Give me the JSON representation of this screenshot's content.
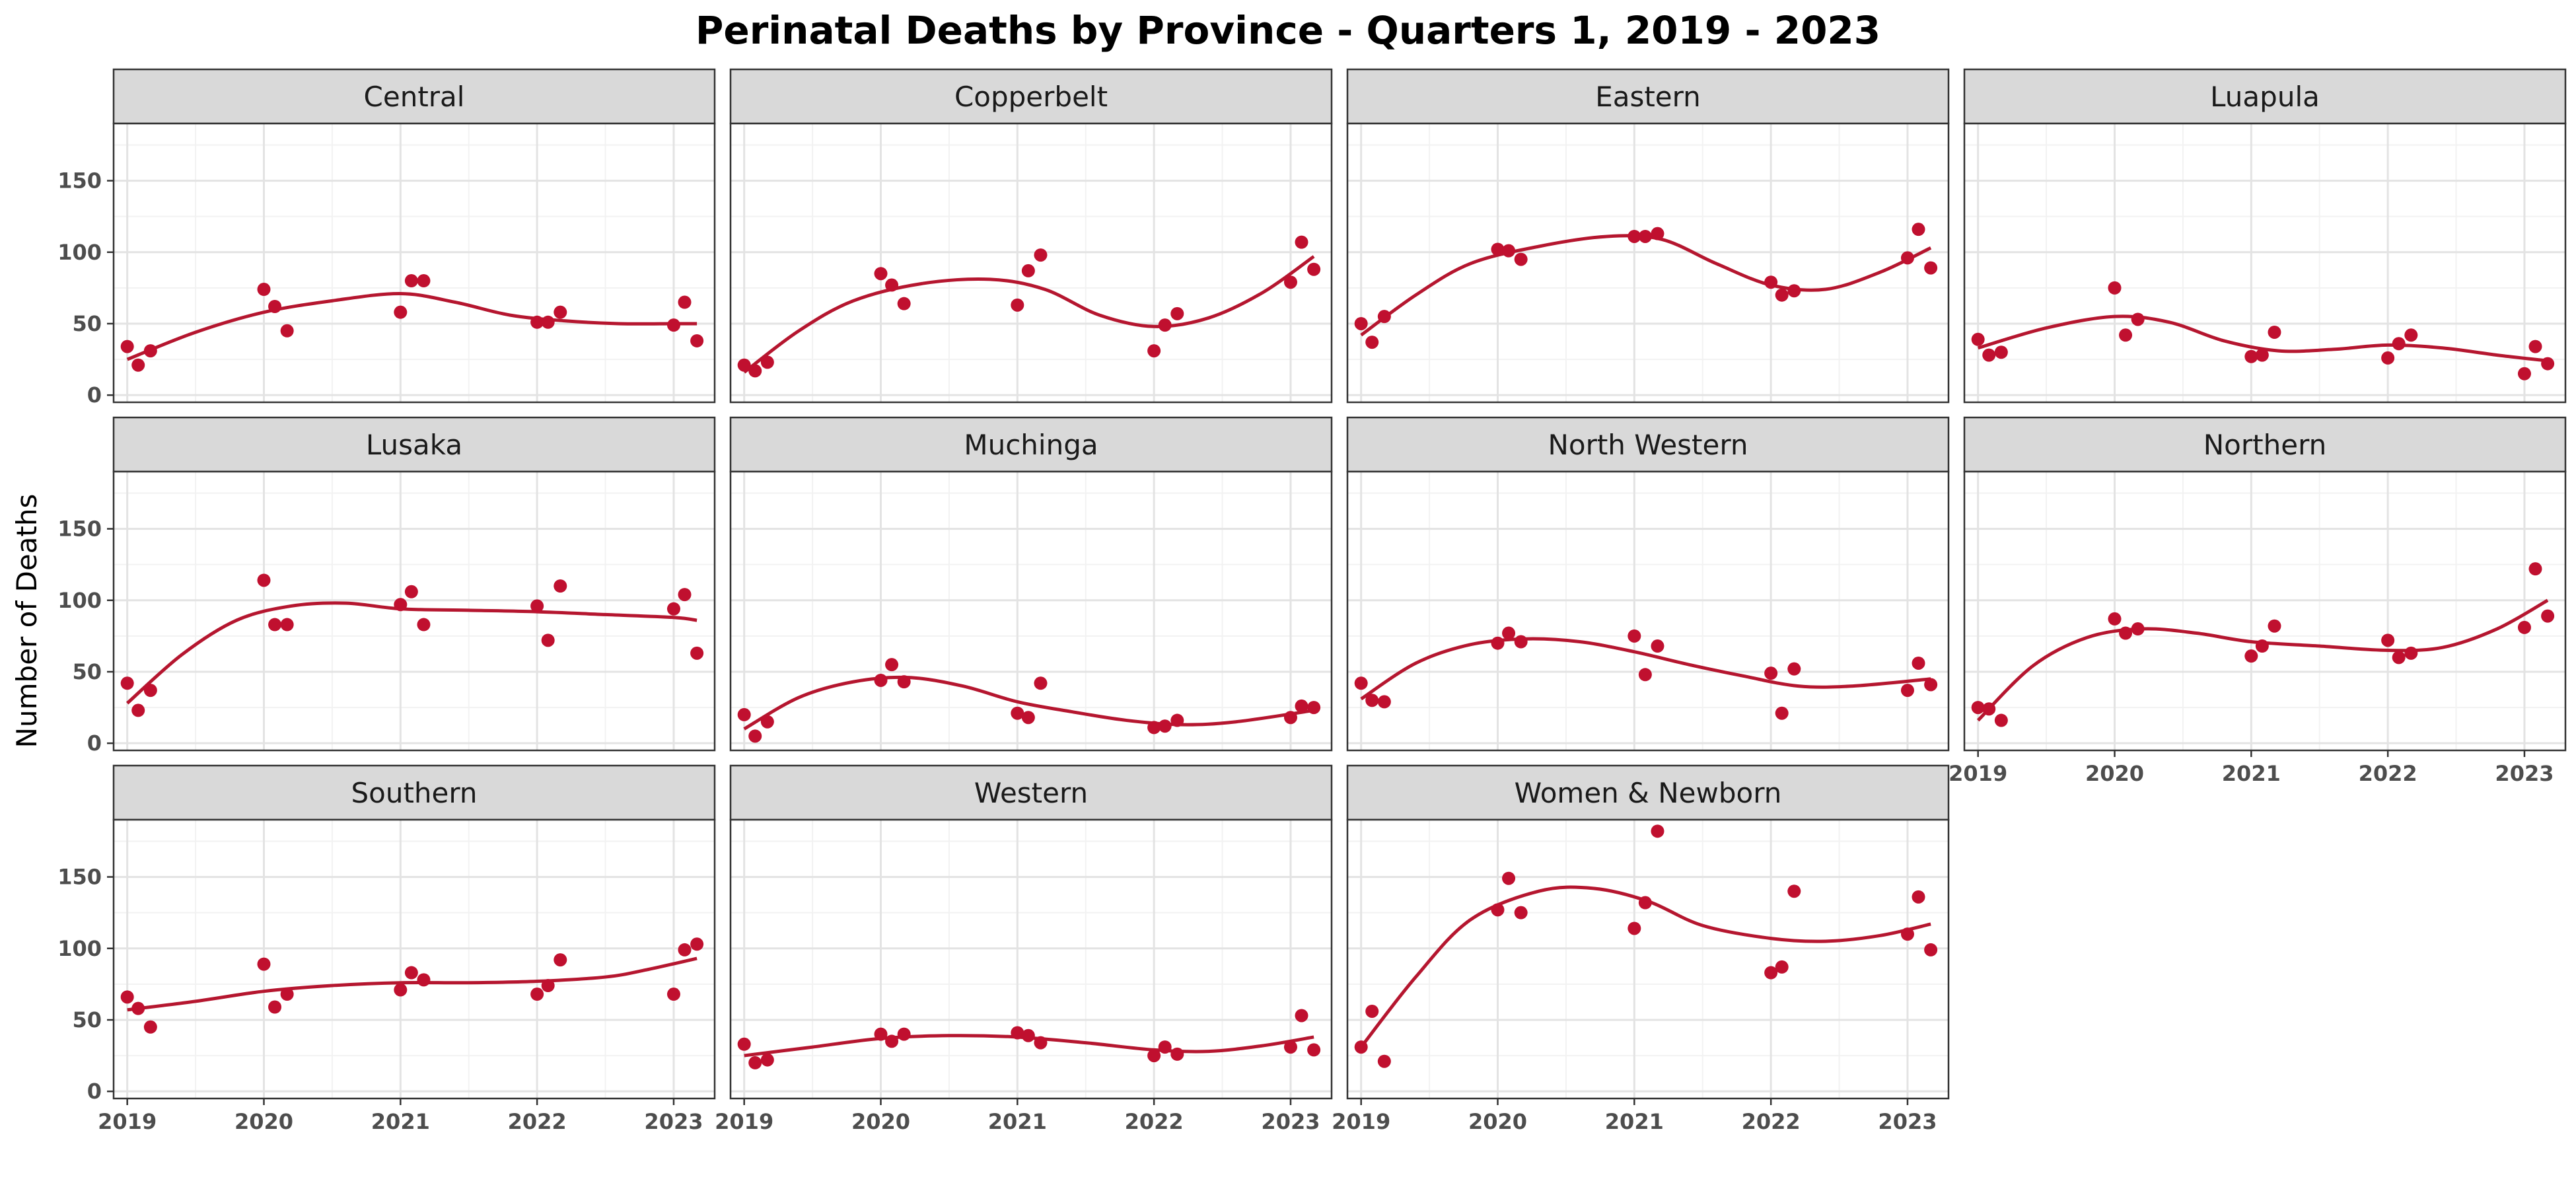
{
  "chart_data": {
    "type": "scatter",
    "title": "Perinatal Deaths by Province - Quarters 1, 2019 - 2023",
    "xlabel": "",
    "ylabel": "Number of Deaths",
    "xlim": [
      2018.9,
      2023.3
    ],
    "ylim": [
      -5,
      190
    ],
    "x_ticks": [
      2019,
      2020,
      2021,
      2022,
      2023
    ],
    "y_ticks": [
      0,
      50,
      100,
      150
    ],
    "grid": true,
    "legend": "none",
    "point_color": "#C0102F",
    "line_color": "#B5162F",
    "strip_fill": "#D9D9D9",
    "panels": [
      {
        "name": "Central",
        "x": [
          2019,
          2019.08,
          2019.17,
          2020,
          2020.08,
          2020.17,
          2021,
          2021.08,
          2021.17,
          2022,
          2022.08,
          2022.17,
          2023,
          2023.08,
          2023.17
        ],
        "y": [
          34,
          21,
          31,
          74,
          62,
          45,
          58,
          80,
          80,
          51,
          51,
          58,
          49,
          65,
          38
        ],
        "smooth": [
          [
            2019,
            25
          ],
          [
            2019.5,
            44
          ],
          [
            2020,
            58
          ],
          [
            2020.5,
            66
          ],
          [
            2021,
            71
          ],
          [
            2021.4,
            65
          ],
          [
            2021.8,
            56
          ],
          [
            2022.2,
            52
          ],
          [
            2022.6,
            50
          ],
          [
            2023,
            50
          ],
          [
            2023.17,
            50
          ]
        ]
      },
      {
        "name": "Copperbelt",
        "x": [
          2019,
          2019.08,
          2019.17,
          2020,
          2020.08,
          2020.17,
          2021,
          2021.08,
          2021.17,
          2022,
          2022.08,
          2022.17,
          2023,
          2023.08,
          2023.17
        ],
        "y": [
          21,
          17,
          23,
          85,
          77,
          64,
          63,
          87,
          98,
          31,
          49,
          57,
          79,
          107,
          88
        ],
        "smooth": [
          [
            2019,
            16
          ],
          [
            2019.4,
            45
          ],
          [
            2019.8,
            66
          ],
          [
            2020.3,
            78
          ],
          [
            2020.8,
            81
          ],
          [
            2021.2,
            74
          ],
          [
            2021.6,
            56
          ],
          [
            2022,
            48
          ],
          [
            2022.4,
            54
          ],
          [
            2022.8,
            72
          ],
          [
            2023.17,
            97
          ]
        ]
      },
      {
        "name": "Eastern",
        "x": [
          2019,
          2019.08,
          2019.17,
          2020,
          2020.08,
          2020.17,
          2021,
          2021.08,
          2021.17,
          2022,
          2022.08,
          2022.17,
          2023,
          2023.08,
          2023.17
        ],
        "y": [
          50,
          37,
          55,
          102,
          101,
          95,
          111,
          111,
          113,
          79,
          70,
          73,
          96,
          116,
          89
        ],
        "smooth": [
          [
            2019,
            42
          ],
          [
            2019.4,
            70
          ],
          [
            2019.8,
            92
          ],
          [
            2020.3,
            104
          ],
          [
            2020.8,
            111
          ],
          [
            2021.2,
            109
          ],
          [
            2021.6,
            92
          ],
          [
            2022,
            77
          ],
          [
            2022.4,
            74
          ],
          [
            2022.8,
            86
          ],
          [
            2023.17,
            103
          ]
        ]
      },
      {
        "name": "Luapula",
        "x": [
          2019,
          2019.08,
          2019.17,
          2020,
          2020.08,
          2020.17,
          2021,
          2021.08,
          2021.17,
          2022,
          2022.08,
          2022.17,
          2023,
          2023.08,
          2023.17
        ],
        "y": [
          39,
          28,
          30,
          75,
          42,
          53,
          27,
          28,
          44,
          26,
          36,
          42,
          15,
          34,
          22
        ],
        "smooth": [
          [
            2019,
            33
          ],
          [
            2019.5,
            47
          ],
          [
            2020,
            55
          ],
          [
            2020.4,
            51
          ],
          [
            2020.8,
            38
          ],
          [
            2021.2,
            31
          ],
          [
            2021.6,
            32
          ],
          [
            2022,
            35
          ],
          [
            2022.4,
            33
          ],
          [
            2022.8,
            28
          ],
          [
            2023.17,
            24
          ]
        ]
      },
      {
        "name": "Lusaka",
        "x": [
          2019,
          2019.08,
          2019.17,
          2020,
          2020.08,
          2020.17,
          2021,
          2021.08,
          2021.17,
          2022,
          2022.08,
          2022.17,
          2023,
          2023.08,
          2023.17
        ],
        "y": [
          42,
          23,
          37,
          114,
          83,
          83,
          97,
          106,
          83,
          96,
          72,
          110,
          94,
          104,
          63
        ],
        "smooth": [
          [
            2019,
            28
          ],
          [
            2019.4,
            62
          ],
          [
            2019.8,
            86
          ],
          [
            2020.2,
            96
          ],
          [
            2020.6,
            98
          ],
          [
            2021,
            94
          ],
          [
            2021.5,
            93
          ],
          [
            2022,
            92
          ],
          [
            2022.5,
            90
          ],
          [
            2023,
            88
          ],
          [
            2023.17,
            86
          ]
        ]
      },
      {
        "name": "Muchinga",
        "x": [
          2019,
          2019.08,
          2019.17,
          2020,
          2020.08,
          2020.17,
          2021,
          2021.08,
          2021.17,
          2022,
          2022.08,
          2022.17,
          2023,
          2023.08,
          2023.17
        ],
        "y": [
          20,
          5,
          15,
          44,
          55,
          43,
          21,
          18,
          42,
          11,
          12,
          16,
          18,
          26,
          25
        ],
        "smooth": [
          [
            2019,
            10
          ],
          [
            2019.4,
            32
          ],
          [
            2019.8,
            43
          ],
          [
            2020.2,
            46
          ],
          [
            2020.6,
            40
          ],
          [
            2021,
            29
          ],
          [
            2021.4,
            22
          ],
          [
            2021.8,
            16
          ],
          [
            2022.2,
            13
          ],
          [
            2022.6,
            15
          ],
          [
            2023.17,
            23
          ]
        ]
      },
      {
        "name": "North Western",
        "x": [
          2019,
          2019.08,
          2019.17,
          2020,
          2020.08,
          2020.17,
          2021,
          2021.08,
          2021.17,
          2022,
          2022.08,
          2022.17,
          2023,
          2023.08,
          2023.17
        ],
        "y": [
          42,
          30,
          29,
          70,
          77,
          71,
          75,
          48,
          68,
          49,
          21,
          52,
          37,
          56,
          41
        ],
        "smooth": [
          [
            2019,
            31
          ],
          [
            2019.4,
            56
          ],
          [
            2019.8,
            69
          ],
          [
            2020.2,
            73
          ],
          [
            2020.6,
            71
          ],
          [
            2021,
            64
          ],
          [
            2021.4,
            55
          ],
          [
            2021.8,
            47
          ],
          [
            2022.2,
            40
          ],
          [
            2022.6,
            40
          ],
          [
            2023.17,
            45
          ]
        ]
      },
      {
        "name": "Northern",
        "x": [
          2019,
          2019.08,
          2019.17,
          2020,
          2020.08,
          2020.17,
          2021,
          2021.08,
          2021.17,
          2022,
          2022.08,
          2022.17,
          2023,
          2023.08,
          2023.17
        ],
        "y": [
          25,
          24,
          16,
          87,
          77,
          80,
          61,
          68,
          82,
          72,
          60,
          63,
          81,
          122,
          89
        ],
        "smooth": [
          [
            2019,
            16
          ],
          [
            2019.4,
            54
          ],
          [
            2019.8,
            74
          ],
          [
            2020.2,
            80
          ],
          [
            2020.6,
            77
          ],
          [
            2021,
            71
          ],
          [
            2021.5,
            68
          ],
          [
            2022,
            65
          ],
          [
            2022.4,
            67
          ],
          [
            2022.8,
            80
          ],
          [
            2023.17,
            100
          ]
        ]
      },
      {
        "name": "Southern",
        "x": [
          2019,
          2019.08,
          2019.17,
          2020,
          2020.08,
          2020.17,
          2021,
          2021.08,
          2021.17,
          2022,
          2022.08,
          2022.17,
          2023,
          2023.08,
          2023.17
        ],
        "y": [
          66,
          58,
          45,
          89,
          59,
          68,
          71,
          83,
          78,
          68,
          74,
          92,
          68,
          99,
          103
        ],
        "smooth": [
          [
            2019,
            57
          ],
          [
            2019.5,
            63
          ],
          [
            2020,
            70
          ],
          [
            2020.5,
            74
          ],
          [
            2021,
            76
          ],
          [
            2021.5,
            76
          ],
          [
            2022,
            77
          ],
          [
            2022.5,
            80
          ],
          [
            2022.8,
            85
          ],
          [
            2023.17,
            93
          ]
        ]
      },
      {
        "name": "Western",
        "x": [
          2019,
          2019.08,
          2019.17,
          2020,
          2020.08,
          2020.17,
          2021,
          2021.08,
          2021.17,
          2022,
          2022.08,
          2022.17,
          2023,
          2023.08,
          2023.17
        ],
        "y": [
          33,
          20,
          22,
          40,
          35,
          40,
          41,
          39,
          34,
          25,
          31,
          26,
          31,
          53,
          29
        ],
        "smooth": [
          [
            2019,
            25
          ],
          [
            2019.5,
            31
          ],
          [
            2020,
            37
          ],
          [
            2020.5,
            39
          ],
          [
            2021,
            38
          ],
          [
            2021.5,
            34
          ],
          [
            2022,
            29
          ],
          [
            2022.4,
            28
          ],
          [
            2022.8,
            32
          ],
          [
            2023.17,
            38
          ]
        ]
      },
      {
        "name": "Women & Newborn",
        "x": [
          2019,
          2019.08,
          2019.17,
          2020,
          2020.08,
          2020.17,
          2021,
          2021.08,
          2021.17,
          2022,
          2022.08,
          2022.17,
          2023,
          2023.08,
          2023.17
        ],
        "y": [
          31,
          56,
          21,
          127,
          149,
          125,
          114,
          132,
          182,
          83,
          87,
          140,
          110,
          136,
          99
        ],
        "smooth": [
          [
            2019,
            31
          ],
          [
            2019.4,
            80
          ],
          [
            2019.8,
            120
          ],
          [
            2020.3,
            140
          ],
          [
            2020.7,
            142
          ],
          [
            2021.1,
            133
          ],
          [
            2021.5,
            116
          ],
          [
            2022,
            107
          ],
          [
            2022.4,
            105
          ],
          [
            2022.8,
            109
          ],
          [
            2023.17,
            117
          ]
        ]
      }
    ]
  }
}
